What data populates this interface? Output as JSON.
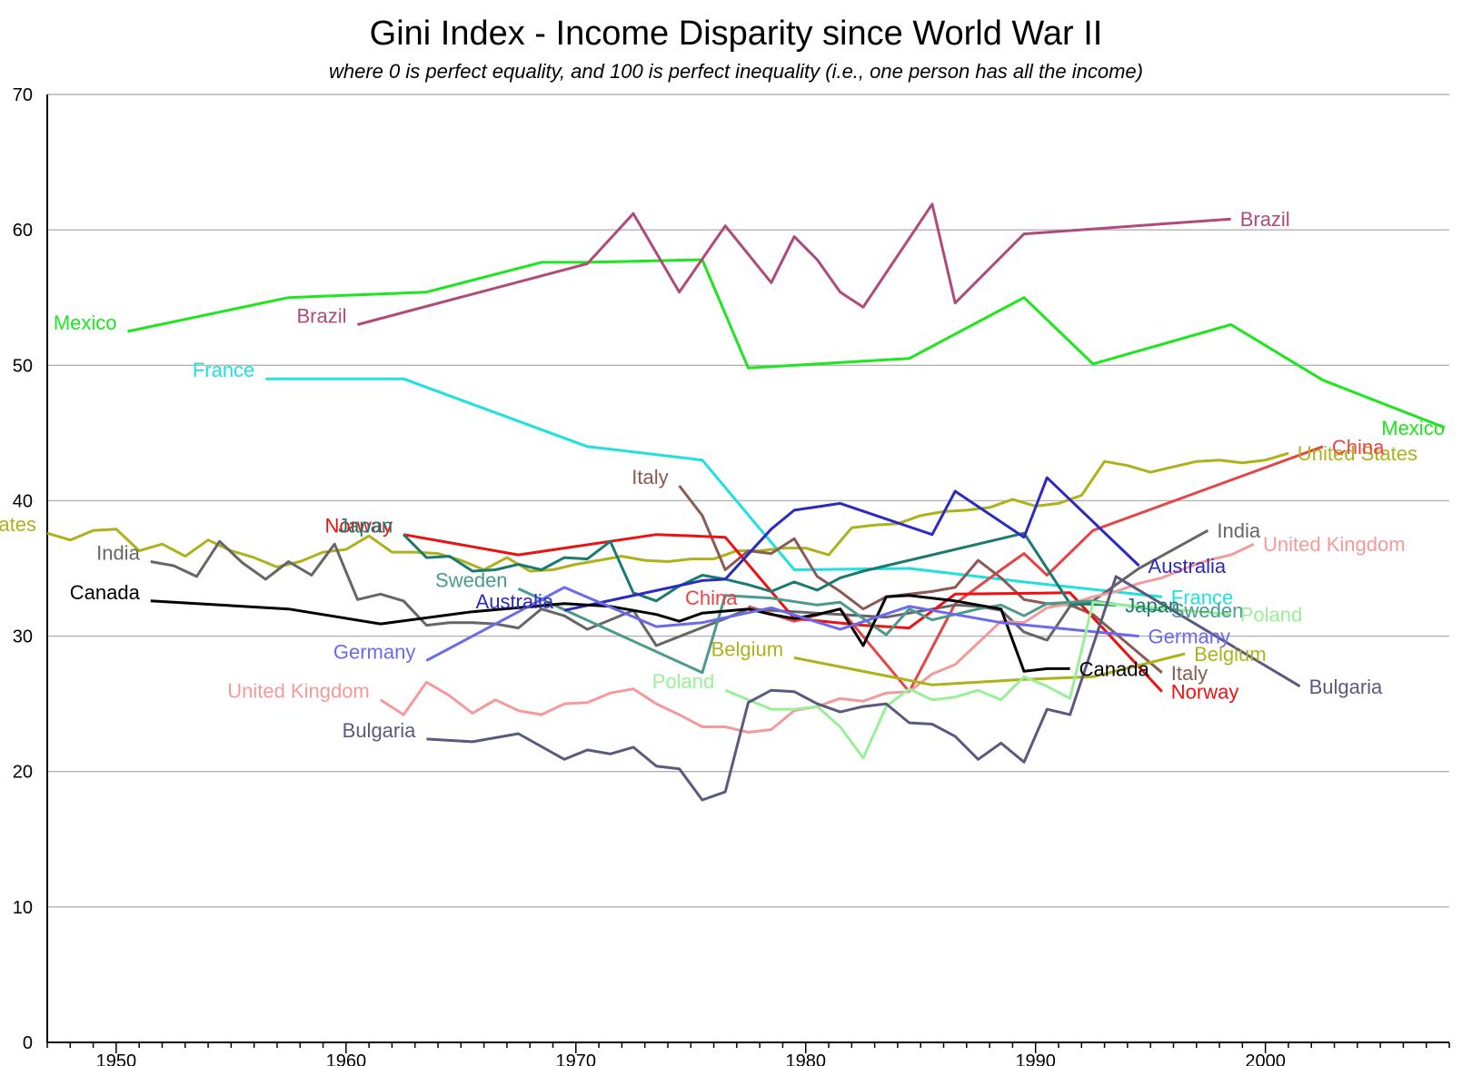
{
  "chart_data": {
    "type": "line",
    "title": "Gini Index - Income Disparity since World War II",
    "subtitle": "where 0 is perfect equality, and 100 is perfect inequality (i.e., one person has all the income)",
    "xlim": [
      1947,
      2008
    ],
    "ylim": [
      0,
      70
    ],
    "x_ticks": [
      1950,
      1960,
      1970,
      1980,
      1990,
      2000
    ],
    "y_ticks": [
      0,
      10,
      20,
      30,
      40,
      50,
      60,
      70
    ],
    "grid": "horizontal",
    "series": [
      {
        "name": "Mexico",
        "color": "#1ee61e",
        "x": [
          1950.5,
          1957.5,
          1963.5,
          1968.5,
          1970.5,
          1975.5,
          1977.5,
          1984.5,
          1989.5,
          1992.5,
          1998.5,
          2002.5,
          2007.8
        ],
        "y": [
          52.5,
          55.0,
          55.4,
          57.6,
          57.6,
          57.8,
          49.8,
          50.5,
          55.0,
          50.1,
          53.0,
          48.9,
          45.4
        ],
        "labels": [
          "Mexico",
          "Mexico"
        ]
      },
      {
        "name": "Brazil",
        "color": "#b04a7a",
        "x": [
          1960.5,
          1970.5,
          1972.5,
          1974.5,
          1976.5,
          1978.5,
          1979.5,
          1980.5,
          1981.5,
          1982.5,
          1985.5,
          1986.5,
          1989.5,
          1998.5
        ],
        "y": [
          53.0,
          57.5,
          61.2,
          55.4,
          60.3,
          56.1,
          59.5,
          57.8,
          55.4,
          54.3,
          61.9,
          54.6,
          59.7,
          60.8
        ],
        "labels": [
          "Brazil",
          "Brazil"
        ]
      },
      {
        "name": "France",
        "color": "#20e0e0",
        "x": [
          1956.5,
          1962.5,
          1970.5,
          1975.5,
          1979.5,
          1984.5,
          1989.5,
          1995.5
        ],
        "y": [
          49.0,
          49.0,
          44.0,
          43.0,
          34.9,
          35.0,
          34.0,
          32.9
        ],
        "labels": [
          "France",
          "France"
        ]
      },
      {
        "name": "United States",
        "color": "#adb21a",
        "x": [
          1947,
          1948,
          1949,
          1950,
          1951,
          1952,
          1953,
          1954,
          1955,
          1956,
          1957,
          1958,
          1959,
          1960,
          1961,
          1962,
          1963,
          1964,
          1965,
          1966,
          1967,
          1968,
          1969,
          1970,
          1971,
          1972,
          1973,
          1974,
          1975,
          1976,
          1977,
          1978,
          1979,
          1980,
          1981,
          1982,
          1983,
          1984,
          1985,
          1986,
          1987,
          1988,
          1989,
          1990,
          1991,
          1992,
          1993,
          1994,
          1995,
          1996,
          1997,
          1998,
          1999,
          2000,
          2001
        ],
        "y": [
          37.6,
          37.1,
          37.8,
          37.9,
          36.3,
          36.8,
          35.9,
          37.1,
          36.3,
          35.8,
          35.1,
          35.5,
          36.2,
          36.4,
          37.4,
          36.2,
          36.2,
          36.1,
          35.6,
          34.9,
          35.8,
          34.8,
          34.9,
          35.3,
          35.6,
          35.9,
          35.6,
          35.5,
          35.7,
          35.7,
          36.3,
          36.3,
          36.5,
          36.5,
          36.0,
          38.0,
          38.2,
          38.3,
          38.9,
          39.2,
          39.3,
          39.5,
          40.1,
          39.6,
          39.8,
          40.4,
          42.9,
          42.6,
          42.1,
          42.5,
          42.9,
          43.0,
          42.8,
          43.0,
          43.5
        ],
        "labels": [
          "United States",
          "United States"
        ]
      },
      {
        "name": "China",
        "color": "#e64545",
        "x": [
          1977.5,
          1979.5,
          1981.5,
          1984.5,
          1986.5,
          1988.5,
          1989.5,
          1990.5,
          1992.5,
          2002.5
        ],
        "y": [
          32.2,
          31.1,
          32.0,
          25.9,
          32.4,
          34.9,
          36.1,
          34.5,
          37.8,
          44.0
        ],
        "labels": [
          "China",
          "China"
        ]
      },
      {
        "name": "Italy",
        "color": "#8b5a55",
        "x": [
          1974.5,
          1975.5,
          1976.5,
          1977.5,
          1978.5,
          1979.5,
          1980.5,
          1981.5,
          1982.5,
          1983.5,
          1985.5,
          1986.5,
          1987.5,
          1988.5,
          1989.5,
          1990.5,
          1991.5,
          1992.5,
          1995.5
        ],
        "y": [
          41.1,
          38.9,
          34.9,
          36.3,
          36.1,
          37.2,
          34.4,
          33.3,
          32.0,
          32.9,
          33.3,
          33.6,
          35.6,
          34.3,
          32.7,
          32.4,
          32.3,
          31.6,
          27.3
        ],
        "labels": [
          "Italy",
          "Italy"
        ]
      },
      {
        "name": "India",
        "color": "#666666",
        "x": [
          1951.5,
          1952.5,
          1953.5,
          1954.5,
          1955.5,
          1956.5,
          1957.5,
          1958.5,
          1959.5,
          1960.5,
          1961.5,
          1962.5,
          1963.5,
          1964.5,
          1965.5,
          1966.5,
          1967.5,
          1968.5,
          1969.5,
          1970.5,
          1972.5,
          1973.5,
          1976.5,
          1977.5,
          1983.5,
          1986.5,
          1987.5,
          1988.5,
          1989.5,
          1990.5,
          1991.5,
          1992.5,
          1994.5,
          1997.5
        ],
        "y": [
          35.5,
          35.2,
          34.4,
          37.0,
          35.4,
          34.2,
          35.5,
          34.5,
          36.8,
          32.7,
          33.1,
          32.6,
          30.8,
          31.0,
          31.0,
          30.9,
          30.6,
          32.0,
          31.5,
          30.5,
          31.9,
          29.3,
          31.3,
          32.0,
          31.4,
          32.3,
          32.2,
          31.9,
          30.3,
          29.7,
          32.2,
          32.6,
          35.0,
          37.8
        ],
        "labels": [
          "India",
          "India"
        ]
      },
      {
        "name": "United Kingdom",
        "color": "#f59a9a",
        "x": [
          1961.5,
          1962.5,
          1963.5,
          1964.5,
          1965.5,
          1966.5,
          1967.5,
          1968.5,
          1969.5,
          1970.5,
          1971.5,
          1972.5,
          1973.5,
          1974.5,
          1975.5,
          1976.5,
          1977.5,
          1978.5,
          1979.5,
          1980.5,
          1981.5,
          1982.5,
          1983.5,
          1984.5,
          1985.5,
          1986.5,
          1987.5,
          1988.5,
          1989.5,
          1990.5,
          1991.5,
          1992.5,
          1993.5,
          1994.5,
          1995.5,
          1996.5,
          1997.5,
          1998.5,
          1999.5
        ],
        "y": [
          25.3,
          24.2,
          26.6,
          25.6,
          24.3,
          25.3,
          24.5,
          24.2,
          25.0,
          25.1,
          25.8,
          26.1,
          25.0,
          24.2,
          23.3,
          23.3,
          22.9,
          23.1,
          24.5,
          24.8,
          25.4,
          25.2,
          25.8,
          25.9,
          27.2,
          27.9,
          29.5,
          31.1,
          31.0,
          32.1,
          32.4,
          32.9,
          33.3,
          33.9,
          34.3,
          35.0,
          35.6,
          36.0,
          36.8
        ],
        "labels": [
          "United Kingdom",
          "United Kingdom"
        ]
      },
      {
        "name": "Norway",
        "color": "#ee1111",
        "x": [
          1962.5,
          1967.5,
          1973.5,
          1976.5,
          1979.5,
          1982.5,
          1984.5,
          1986.5,
          1991.5,
          1995.5
        ],
        "y": [
          37.5,
          36.0,
          37.5,
          37.3,
          31.3,
          30.8,
          30.6,
          33.1,
          33.2,
          25.9
        ],
        "labels": [
          "Norway",
          "Norway"
        ]
      },
      {
        "name": "Japan",
        "color": "#1a7a6e",
        "x": [
          1962.5,
          1963.5,
          1964.5,
          1965.5,
          1966.5,
          1967.5,
          1968.5,
          1969.5,
          1970.5,
          1971.5,
          1972.5,
          1973.5,
          1974.5,
          1975.5,
          1976.5,
          1977.5,
          1978.5,
          1979.5,
          1980.5,
          1981.5,
          1982.5,
          1989.5,
          1990.5,
          1991.5,
          1993.5
        ],
        "y": [
          37.5,
          35.8,
          35.9,
          34.8,
          34.9,
          35.3,
          34.9,
          35.8,
          35.7,
          37.0,
          33.2,
          32.6,
          33.7,
          34.5,
          34.2,
          33.8,
          33.3,
          34.0,
          33.4,
          34.3,
          34.8,
          37.6,
          35.0,
          32.4,
          32.3
        ],
        "labels": [
          "Japan",
          "Japan"
        ]
      },
      {
        "name": "Sweden",
        "color": "#4a9a8e",
        "x": [
          1967.5,
          1975.5,
          1976.5,
          1978.5,
          1980.5,
          1981.5,
          1983.5,
          1984.5,
          1985.5,
          1987.5,
          1988.5,
          1989.5,
          1990.5,
          1992.5,
          1995.5
        ],
        "y": [
          33.5,
          27.3,
          33.0,
          32.8,
          32.3,
          32.5,
          30.1,
          32.0,
          31.2,
          32.0,
          32.3,
          31.5,
          32.4,
          32.6,
          31.9
        ],
        "labels": [
          "Sweden",
          "Sweden"
        ]
      },
      {
        "name": "Australia",
        "color": "#2b2bc2",
        "x": [
          1969.5,
          1975.5,
          1976.5,
          1978.5,
          1979.5,
          1981.5,
          1985.5,
          1986.5,
          1989.5,
          1990.5,
          1994.5
        ],
        "y": [
          31.9,
          34.1,
          34.2,
          37.9,
          39.3,
          39.8,
          37.5,
          40.7,
          37.3,
          41.7,
          35.2
        ],
        "labels": [
          "Australia",
          "Australia"
        ]
      },
      {
        "name": "Canada",
        "color": "#000000",
        "x": [
          1951.5,
          1957.5,
          1961.5,
          1965.5,
          1969.5,
          1971.5,
          1973.5,
          1974.5,
          1975.5,
          1977.5,
          1978.5,
          1979.5,
          1980.5,
          1981.5,
          1982.5,
          1983.5,
          1984.5,
          1985.5,
          1986.5,
          1987.5,
          1988.5,
          1989.5,
          1990.5,
          1991.5
        ],
        "y": [
          32.6,
          32.0,
          30.9,
          31.8,
          32.4,
          32.2,
          31.6,
          31.1,
          31.7,
          32.0,
          31.6,
          31.3,
          31.6,
          32.0,
          29.3,
          32.9,
          33.0,
          32.8,
          32.6,
          32.3,
          32.0,
          27.4,
          27.6,
          27.6
        ],
        "labels": [
          "Canada",
          "Canada"
        ]
      },
      {
        "name": "Germany",
        "color": "#6a6aef",
        "x": [
          1963.5,
          1969.5,
          1973.5,
          1975.5,
          1978.5,
          1981.5,
          1984.5,
          1988.5,
          1994.5
        ],
        "y": [
          28.2,
          33.6,
          30.7,
          31.0,
          32.1,
          30.5,
          32.2,
          31.0,
          30.0
        ],
        "labels": [
          "Germany",
          "Germany"
        ]
      },
      {
        "name": "Belgium",
        "color": "#adb21a",
        "x": [
          1979.5,
          1985.5,
          1989.5,
          1992.5,
          1996.5
        ],
        "y": [
          28.4,
          26.4,
          26.8,
          27.0,
          28.7
        ],
        "labels": [
          "Belgium",
          "Belgium"
        ]
      },
      {
        "name": "Poland",
        "color": "#98f098",
        "x": [
          1976.5,
          1978.5,
          1979.5,
          1980.5,
          1981.5,
          1982.5,
          1983.5,
          1984.5,
          1985.5,
          1986.5,
          1987.5,
          1988.5,
          1989.5,
          1990.5,
          1991.5,
          1992.5,
          1998.5
        ],
        "y": [
          26.0,
          24.6,
          24.6,
          24.8,
          23.3,
          21.0,
          24.8,
          26.1,
          25.3,
          25.5,
          26.0,
          25.3,
          27.0,
          26.3,
          25.4,
          32.5,
          31.6
        ],
        "labels": [
          "Poland",
          "Poland"
        ]
      },
      {
        "name": "Bulgaria",
        "color": "#5a5a80",
        "x": [
          1963.5,
          1965.5,
          1967.5,
          1969.5,
          1970.5,
          1971.5,
          1972.5,
          1973.5,
          1974.5,
          1975.5,
          1976.5,
          1977.5,
          1978.5,
          1979.5,
          1980.5,
          1981.5,
          1982.5,
          1983.5,
          1984.5,
          1985.5,
          1986.5,
          1987.5,
          1988.5,
          1989.5,
          1990.5,
          1991.5,
          1993.5,
          2001.5
        ],
        "y": [
          22.4,
          22.2,
          22.8,
          20.9,
          21.6,
          21.3,
          21.8,
          20.4,
          20.2,
          17.9,
          18.5,
          25.1,
          26.0,
          25.9,
          25.0,
          24.4,
          24.8,
          25.0,
          23.6,
          23.5,
          22.6,
          20.9,
          22.1,
          20.7,
          24.6,
          24.2,
          34.4,
          26.3
        ],
        "labels": [
          "Bulgaria",
          "Bulgaria"
        ]
      }
    ]
  }
}
